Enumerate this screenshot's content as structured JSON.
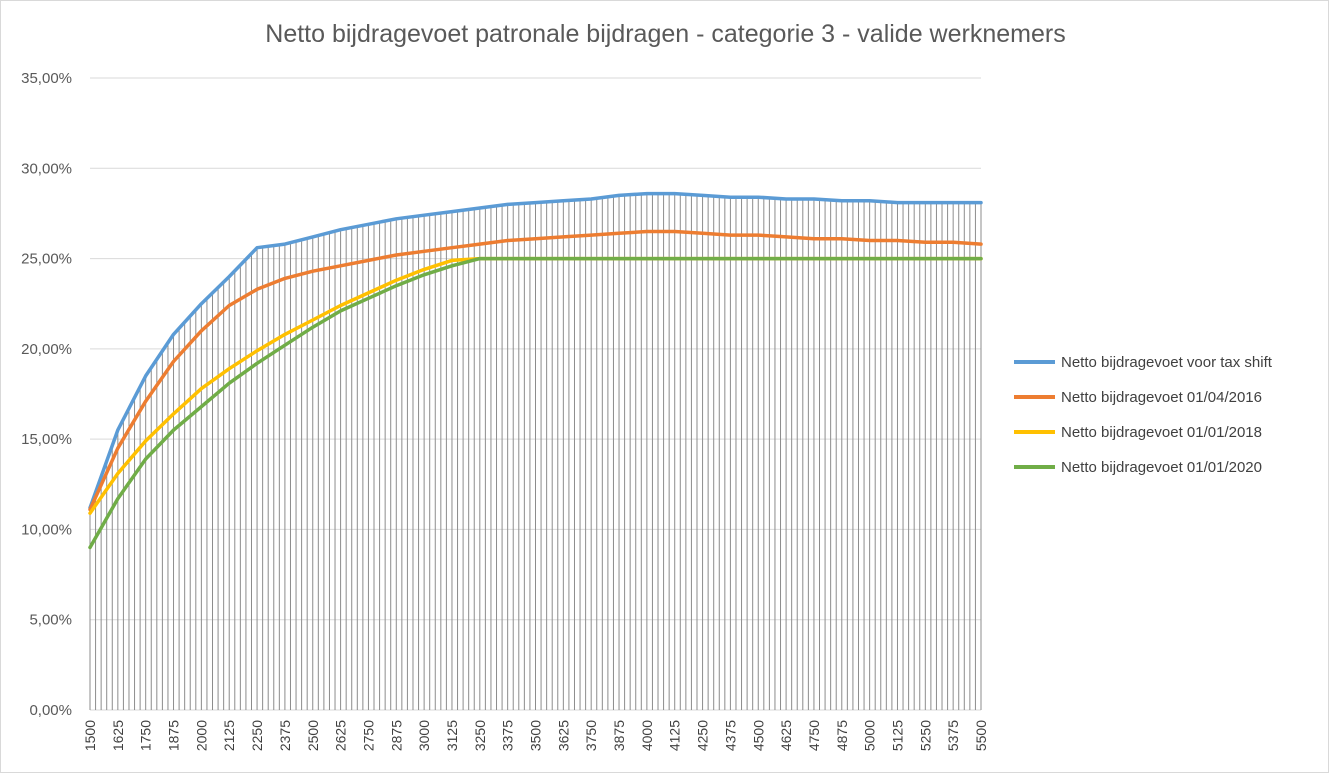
{
  "chart_data": {
    "type": "line",
    "title": "Netto bijdragevoet patronale bijdragen - categorie 3 - valide werknemers",
    "xlabel": "",
    "ylabel": "",
    "ylim": [
      0,
      0.35
    ],
    "yticks": [
      "0,00%",
      "5,00%",
      "10,00%",
      "15,00%",
      "20,00%",
      "25,00%",
      "30,00%",
      "35,00%"
    ],
    "xlim": [
      1500,
      5500
    ],
    "x_step": 25,
    "xtick_labels": [
      "1500",
      "1625",
      "1750",
      "1875",
      "2000",
      "2125",
      "2250",
      "2375",
      "2500",
      "2625",
      "2750",
      "2875",
      "3000",
      "3125",
      "3250",
      "3375",
      "3500",
      "3625",
      "3750",
      "3875",
      "4000",
      "4125",
      "4250",
      "4375",
      "4500",
      "4625",
      "4750",
      "4875",
      "5000",
      "5125",
      "5250",
      "5375",
      "5500"
    ],
    "grid": "horizontal gridlines and vertical drop lines",
    "legend_position": "right",
    "series": [
      {
        "name": "Netto bijdragevoet voor tax shift",
        "color": "#5b9bd5",
        "points": [
          [
            1500,
            0.112
          ],
          [
            1625,
            0.155
          ],
          [
            1750,
            0.185
          ],
          [
            1875,
            0.208
          ],
          [
            2000,
            0.225
          ],
          [
            2125,
            0.24
          ],
          [
            2250,
            0.256
          ],
          [
            2375,
            0.258
          ],
          [
            2500,
            0.262
          ],
          [
            2625,
            0.266
          ],
          [
            2750,
            0.269
          ],
          [
            2875,
            0.272
          ],
          [
            3000,
            0.274
          ],
          [
            3125,
            0.276
          ],
          [
            3250,
            0.278
          ],
          [
            3375,
            0.28
          ],
          [
            3500,
            0.281
          ],
          [
            3625,
            0.282
          ],
          [
            3750,
            0.283
          ],
          [
            3875,
            0.285
          ],
          [
            4000,
            0.286
          ],
          [
            4125,
            0.286
          ],
          [
            4250,
            0.285
          ],
          [
            4375,
            0.284
          ],
          [
            4500,
            0.284
          ],
          [
            4625,
            0.283
          ],
          [
            4750,
            0.283
          ],
          [
            4875,
            0.282
          ],
          [
            5000,
            0.282
          ],
          [
            5125,
            0.281
          ],
          [
            5250,
            0.281
          ],
          [
            5375,
            0.281
          ],
          [
            5500,
            0.281
          ]
        ]
      },
      {
        "name": "Netto bijdragevoet 01/04/2016",
        "color": "#ed7d31",
        "points": [
          [
            1500,
            0.111
          ],
          [
            1625,
            0.145
          ],
          [
            1750,
            0.171
          ],
          [
            1875,
            0.193
          ],
          [
            2000,
            0.21
          ],
          [
            2125,
            0.224
          ],
          [
            2250,
            0.233
          ],
          [
            2375,
            0.239
          ],
          [
            2500,
            0.243
          ],
          [
            2625,
            0.246
          ],
          [
            2750,
            0.249
          ],
          [
            2875,
            0.252
          ],
          [
            3000,
            0.254
          ],
          [
            3125,
            0.256
          ],
          [
            3250,
            0.258
          ],
          [
            3375,
            0.26
          ],
          [
            3500,
            0.261
          ],
          [
            3625,
            0.262
          ],
          [
            3750,
            0.263
          ],
          [
            3875,
            0.264
          ],
          [
            4000,
            0.265
          ],
          [
            4125,
            0.265
          ],
          [
            4250,
            0.264
          ],
          [
            4375,
            0.263
          ],
          [
            4500,
            0.263
          ],
          [
            4625,
            0.262
          ],
          [
            4750,
            0.261
          ],
          [
            4875,
            0.261
          ],
          [
            5000,
            0.26
          ],
          [
            5125,
            0.26
          ],
          [
            5250,
            0.259
          ],
          [
            5375,
            0.259
          ],
          [
            5500,
            0.258
          ]
        ]
      },
      {
        "name": "Netto bijdragevoet 01/01/2018",
        "color": "#ffc000",
        "points": [
          [
            1500,
            0.109
          ],
          [
            1625,
            0.131
          ],
          [
            1750,
            0.149
          ],
          [
            1875,
            0.164
          ],
          [
            2000,
            0.178
          ],
          [
            2125,
            0.189
          ],
          [
            2250,
            0.199
          ],
          [
            2375,
            0.208
          ],
          [
            2500,
            0.216
          ],
          [
            2625,
            0.224
          ],
          [
            2750,
            0.231
          ],
          [
            2875,
            0.238
          ],
          [
            3000,
            0.244
          ],
          [
            3125,
            0.249
          ],
          [
            3250,
            0.25
          ],
          [
            3375,
            0.25
          ],
          [
            3500,
            0.25
          ],
          [
            3625,
            0.25
          ],
          [
            3750,
            0.25
          ],
          [
            3875,
            0.25
          ],
          [
            4000,
            0.25
          ],
          [
            4125,
            0.25
          ],
          [
            4250,
            0.25
          ],
          [
            4375,
            0.25
          ],
          [
            4500,
            0.25
          ],
          [
            4625,
            0.25
          ],
          [
            4750,
            0.25
          ],
          [
            4875,
            0.25
          ],
          [
            5000,
            0.25
          ],
          [
            5125,
            0.25
          ],
          [
            5250,
            0.25
          ],
          [
            5375,
            0.25
          ],
          [
            5500,
            0.25
          ]
        ]
      },
      {
        "name": "Netto bijdragevoet 01/01/2020",
        "color": "#70ad47",
        "points": [
          [
            1500,
            0.09
          ],
          [
            1625,
            0.117
          ],
          [
            1750,
            0.139
          ],
          [
            1875,
            0.155
          ],
          [
            2000,
            0.168
          ],
          [
            2125,
            0.181
          ],
          [
            2250,
            0.192
          ],
          [
            2375,
            0.202
          ],
          [
            2500,
            0.212
          ],
          [
            2625,
            0.221
          ],
          [
            2750,
            0.228
          ],
          [
            2875,
            0.235
          ],
          [
            3000,
            0.241
          ],
          [
            3125,
            0.246
          ],
          [
            3250,
            0.25
          ],
          [
            3375,
            0.25
          ],
          [
            3500,
            0.25
          ],
          [
            3625,
            0.25
          ],
          [
            3750,
            0.25
          ],
          [
            3875,
            0.25
          ],
          [
            4000,
            0.25
          ],
          [
            4125,
            0.25
          ],
          [
            4250,
            0.25
          ],
          [
            4375,
            0.25
          ],
          [
            4500,
            0.25
          ],
          [
            4625,
            0.25
          ],
          [
            4750,
            0.25
          ],
          [
            4875,
            0.25
          ],
          [
            5000,
            0.25
          ],
          [
            5125,
            0.25
          ],
          [
            5250,
            0.25
          ],
          [
            5375,
            0.25
          ],
          [
            5500,
            0.25
          ]
        ]
      }
    ]
  }
}
